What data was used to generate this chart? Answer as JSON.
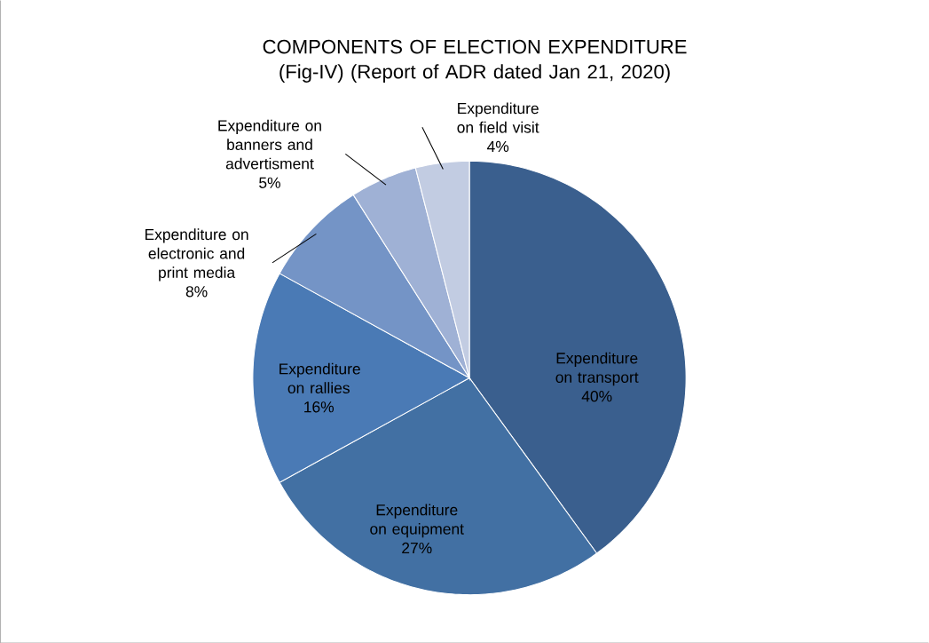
{
  "chart_data": {
    "type": "pie",
    "title": "COMPONENTS OF ELECTION EXPENDITURE (Fig-IV) (Report of ADR dated Jan 21, 2020)",
    "categories": [
      "Expenditure on transport",
      "Expenditure on equipment",
      "Expenditure on rallies",
      "Expenditure on electronic and print media",
      "Expenditure on banners and advertisment",
      "Expenditure on field visit"
    ],
    "values": [
      40,
      27,
      16,
      8,
      5,
      4
    ],
    "value_labels": [
      "40%",
      "27%",
      "16%",
      "8%",
      "5%",
      "4%"
    ],
    "colors": [
      "#3a5f8e",
      "#4270a3",
      "#4a7ab5",
      "#7494c6",
      "#9fb1d5",
      "#c2cce2"
    ]
  }
}
